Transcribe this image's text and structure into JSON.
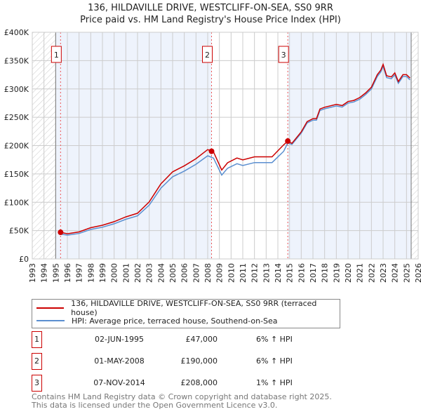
{
  "chart_data": {
    "type": "line",
    "title": "136, HILDAVILLE DRIVE, WESTCLIFF-ON-SEA, SS0 9RR",
    "subtitle": "Price paid vs. HM Land Registry's House Price Index (HPI)",
    "xlim": [
      1993,
      2026
    ],
    "ylim": [
      0,
      400000
    ],
    "yticks": [
      {
        "v": 0,
        "label": "£0"
      },
      {
        "v": 50000,
        "label": "£50K"
      },
      {
        "v": 100000,
        "label": "£100K"
      },
      {
        "v": 150000,
        "label": "£150K"
      },
      {
        "v": 200000,
        "label": "£200K"
      },
      {
        "v": 250000,
        "label": "£250K"
      },
      {
        "v": 300000,
        "label": "£300K"
      },
      {
        "v": 350000,
        "label": "£350K"
      },
      {
        "v": 400000,
        "label": "£400K"
      }
    ],
    "xticks": [
      "1993",
      "1994",
      "1995",
      "1996",
      "1997",
      "1998",
      "1999",
      "2000",
      "2001",
      "2002",
      "2003",
      "2004",
      "2005",
      "2006",
      "2007",
      "2008",
      "2009",
      "2010",
      "2011",
      "2012",
      "2013",
      "2014",
      "2015",
      "2016",
      "2017",
      "2018",
      "2019",
      "2020",
      "2021",
      "2022",
      "2023",
      "2024",
      "2025",
      "2026"
    ],
    "grid": true,
    "data_start": 1995.0,
    "data_end": 2025.4,
    "x": [
      1995.4,
      1996,
      1997,
      1998,
      1999,
      2000,
      2001,
      2002,
      2003,
      2003.5,
      2004,
      2005,
      2005.5,
      2006,
      2007,
      2008,
      2008.5,
      2009.2,
      2009.7,
      2010.5,
      2011,
      2012,
      2013,
      2013.5,
      2014,
      2014.5,
      2014.85,
      2015.2,
      2016,
      2016.5,
      2017,
      2017.3,
      2017.6,
      2018,
      2019,
      2019.5,
      2020,
      2020.5,
      2021,
      2021.5,
      2022,
      2022.5,
      2022.8,
      2023.0,
      2023.3,
      2023.7,
      2024,
      2024.3,
      2024.7,
      2025,
      2025.3
    ],
    "series": [
      {
        "name": "136, HILDAVILLE DRIVE, WESTCLIFF-ON-SEA, SS0 9RR (terraced house)",
        "color": "#cc0000",
        "values": [
          47000,
          44500,
          47700,
          55100,
          59400,
          65700,
          74200,
          80600,
          100700,
          116600,
          132500,
          153700,
          159000,
          164300,
          177000,
          192900,
          188700,
          156900,
          169600,
          178100,
          174900,
          180200,
          180200,
          180200,
          190800,
          201400,
          208000,
          204000,
          224200,
          242400,
          247500,
          247500,
          264600,
          267700,
          272700,
          270700,
          277800,
          279800,
          284800,
          292900,
          303000,
          325200,
          333300,
          343400,
          323200,
          321200,
          328300,
          313100,
          325200,
          325200,
          319200
        ]
      },
      {
        "name": "HPI: Average price, terraced house, Southend-on-Sea",
        "color": "#5b8fd0",
        "values": [
          44000,
          42000,
          45000,
          52000,
          56000,
          62000,
          70000,
          76000,
          95000,
          110000,
          125000,
          145000,
          150000,
          155000,
          167000,
          182000,
          178000,
          148000,
          160000,
          168000,
          165000,
          170000,
          170000,
          170000,
          180000,
          190000,
          205000,
          202000,
          222000,
          240000,
          245000,
          245000,
          262000,
          265000,
          270000,
          268000,
          275000,
          277000,
          282000,
          290000,
          300000,
          322000,
          330000,
          340000,
          320000,
          318000,
          325000,
          310000,
          322000,
          322000,
          316000
        ]
      }
    ],
    "sales": [
      {
        "n": "1",
        "x": 1995.42,
        "y": 47000,
        "date": "02-JUN-1995",
        "price": "£47,000",
        "hpi": "6% ↑ HPI"
      },
      {
        "n": "2",
        "x": 2008.33,
        "y": 190000,
        "date": "01-MAY-2008",
        "price": "£190,000",
        "hpi": "6% ↑ HPI"
      },
      {
        "n": "3",
        "x": 2014.85,
        "y": 208000,
        "date": "07-NOV-2014",
        "price": "£208,000",
        "hpi": "1% ↑ HPI"
      }
    ]
  },
  "footer": [
    "Contains HM Land Registry data © Crown copyright and database right 2025.",
    "This data is licensed under the Open Government Licence v3.0."
  ]
}
